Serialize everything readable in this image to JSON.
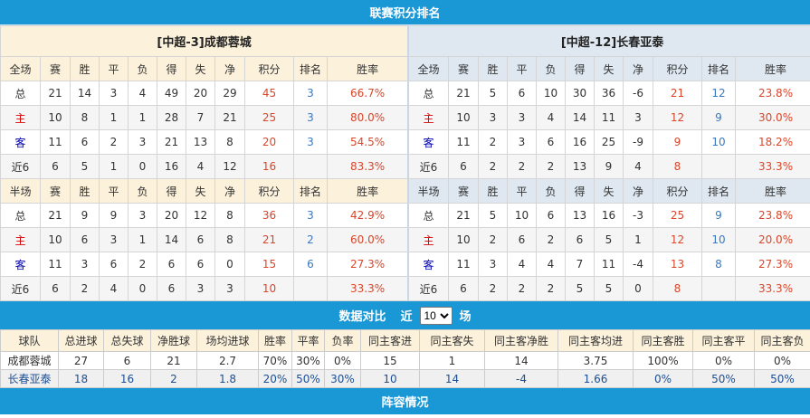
{
  "title": "联赛积分排名",
  "columns": [
    "赛",
    "胜",
    "平",
    "负",
    "得",
    "失",
    "净",
    "积分",
    "排名",
    "胜率"
  ],
  "teams": [
    {
      "header": "[中超-3]成都蓉城",
      "full": {
        "label": "全场",
        "rows": [
          [
            "总",
            "21",
            "14",
            "3",
            "4",
            "49",
            "20",
            "29",
            "45",
            "3",
            "66.7%"
          ],
          [
            "主",
            "10",
            "8",
            "1",
            "1",
            "28",
            "7",
            "21",
            "25",
            "3",
            "80.0%"
          ],
          [
            "客",
            "11",
            "6",
            "2",
            "3",
            "21",
            "13",
            "8",
            "20",
            "3",
            "54.5%"
          ],
          [
            "近6",
            "6",
            "5",
            "1",
            "0",
            "16",
            "4",
            "12",
            "16",
            "",
            "83.3%"
          ]
        ]
      },
      "half": {
        "label": "半场",
        "rows": [
          [
            "总",
            "21",
            "9",
            "9",
            "3",
            "20",
            "12",
            "8",
            "36",
            "3",
            "42.9%"
          ],
          [
            "主",
            "10",
            "6",
            "3",
            "1",
            "14",
            "6",
            "8",
            "21",
            "2",
            "60.0%"
          ],
          [
            "客",
            "11",
            "3",
            "6",
            "2",
            "6",
            "6",
            "0",
            "15",
            "6",
            "27.3%"
          ],
          [
            "近6",
            "6",
            "2",
            "4",
            "0",
            "6",
            "3",
            "3",
            "10",
            "",
            "33.3%"
          ]
        ]
      }
    },
    {
      "header": "[中超-12]长春亚泰",
      "full": {
        "label": "全场",
        "rows": [
          [
            "总",
            "21",
            "5",
            "6",
            "10",
            "30",
            "36",
            "-6",
            "21",
            "12",
            "23.8%"
          ],
          [
            "主",
            "10",
            "3",
            "3",
            "4",
            "14",
            "11",
            "3",
            "12",
            "9",
            "30.0%"
          ],
          [
            "客",
            "11",
            "2",
            "3",
            "6",
            "16",
            "25",
            "-9",
            "9",
            "10",
            "18.2%"
          ],
          [
            "近6",
            "6",
            "2",
            "2",
            "2",
            "13",
            "9",
            "4",
            "8",
            "",
            "33.3%"
          ]
        ]
      },
      "half": {
        "label": "半场",
        "rows": [
          [
            "总",
            "21",
            "5",
            "10",
            "6",
            "13",
            "16",
            "-3",
            "25",
            "9",
            "23.8%"
          ],
          [
            "主",
            "10",
            "2",
            "6",
            "2",
            "6",
            "5",
            "1",
            "12",
            "10",
            "20.0%"
          ],
          [
            "客",
            "11",
            "3",
            "4",
            "4",
            "7",
            "11",
            "-4",
            "13",
            "8",
            "27.3%"
          ],
          [
            "近6",
            "6",
            "2",
            "2",
            "2",
            "5",
            "5",
            "0",
            "8",
            "",
            "33.3%"
          ]
        ]
      }
    }
  ],
  "compare": {
    "title": "数据对比",
    "prefix": "近",
    "selected": "10",
    "suffix": "场",
    "headers": [
      "球队",
      "总进球",
      "总失球",
      "净胜球",
      "场均进球",
      "胜率",
      "平率",
      "负率",
      "同主客进",
      "同主客失",
      "同主客净胜",
      "同主客均进",
      "同主客胜",
      "同主客平",
      "同主客负"
    ],
    "rows": [
      [
        "成都蓉城",
        "27",
        "6",
        "21",
        "2.7",
        "70%",
        "30%",
        "0%",
        "15",
        "1",
        "14",
        "3.75",
        "100%",
        "0%",
        "0%"
      ],
      [
        "长春亚泰",
        "18",
        "16",
        "2",
        "1.8",
        "20%",
        "50%",
        "30%",
        "10",
        "14",
        "-4",
        "1.66",
        "0%",
        "50%",
        "50%"
      ]
    ]
  },
  "lineup_title": "阵容情况",
  "colors": {
    "header": "#1a97d5",
    "points": "#d9462a",
    "rank": "#3a78c0",
    "home": "#d80000",
    "away": "#0000b0"
  }
}
